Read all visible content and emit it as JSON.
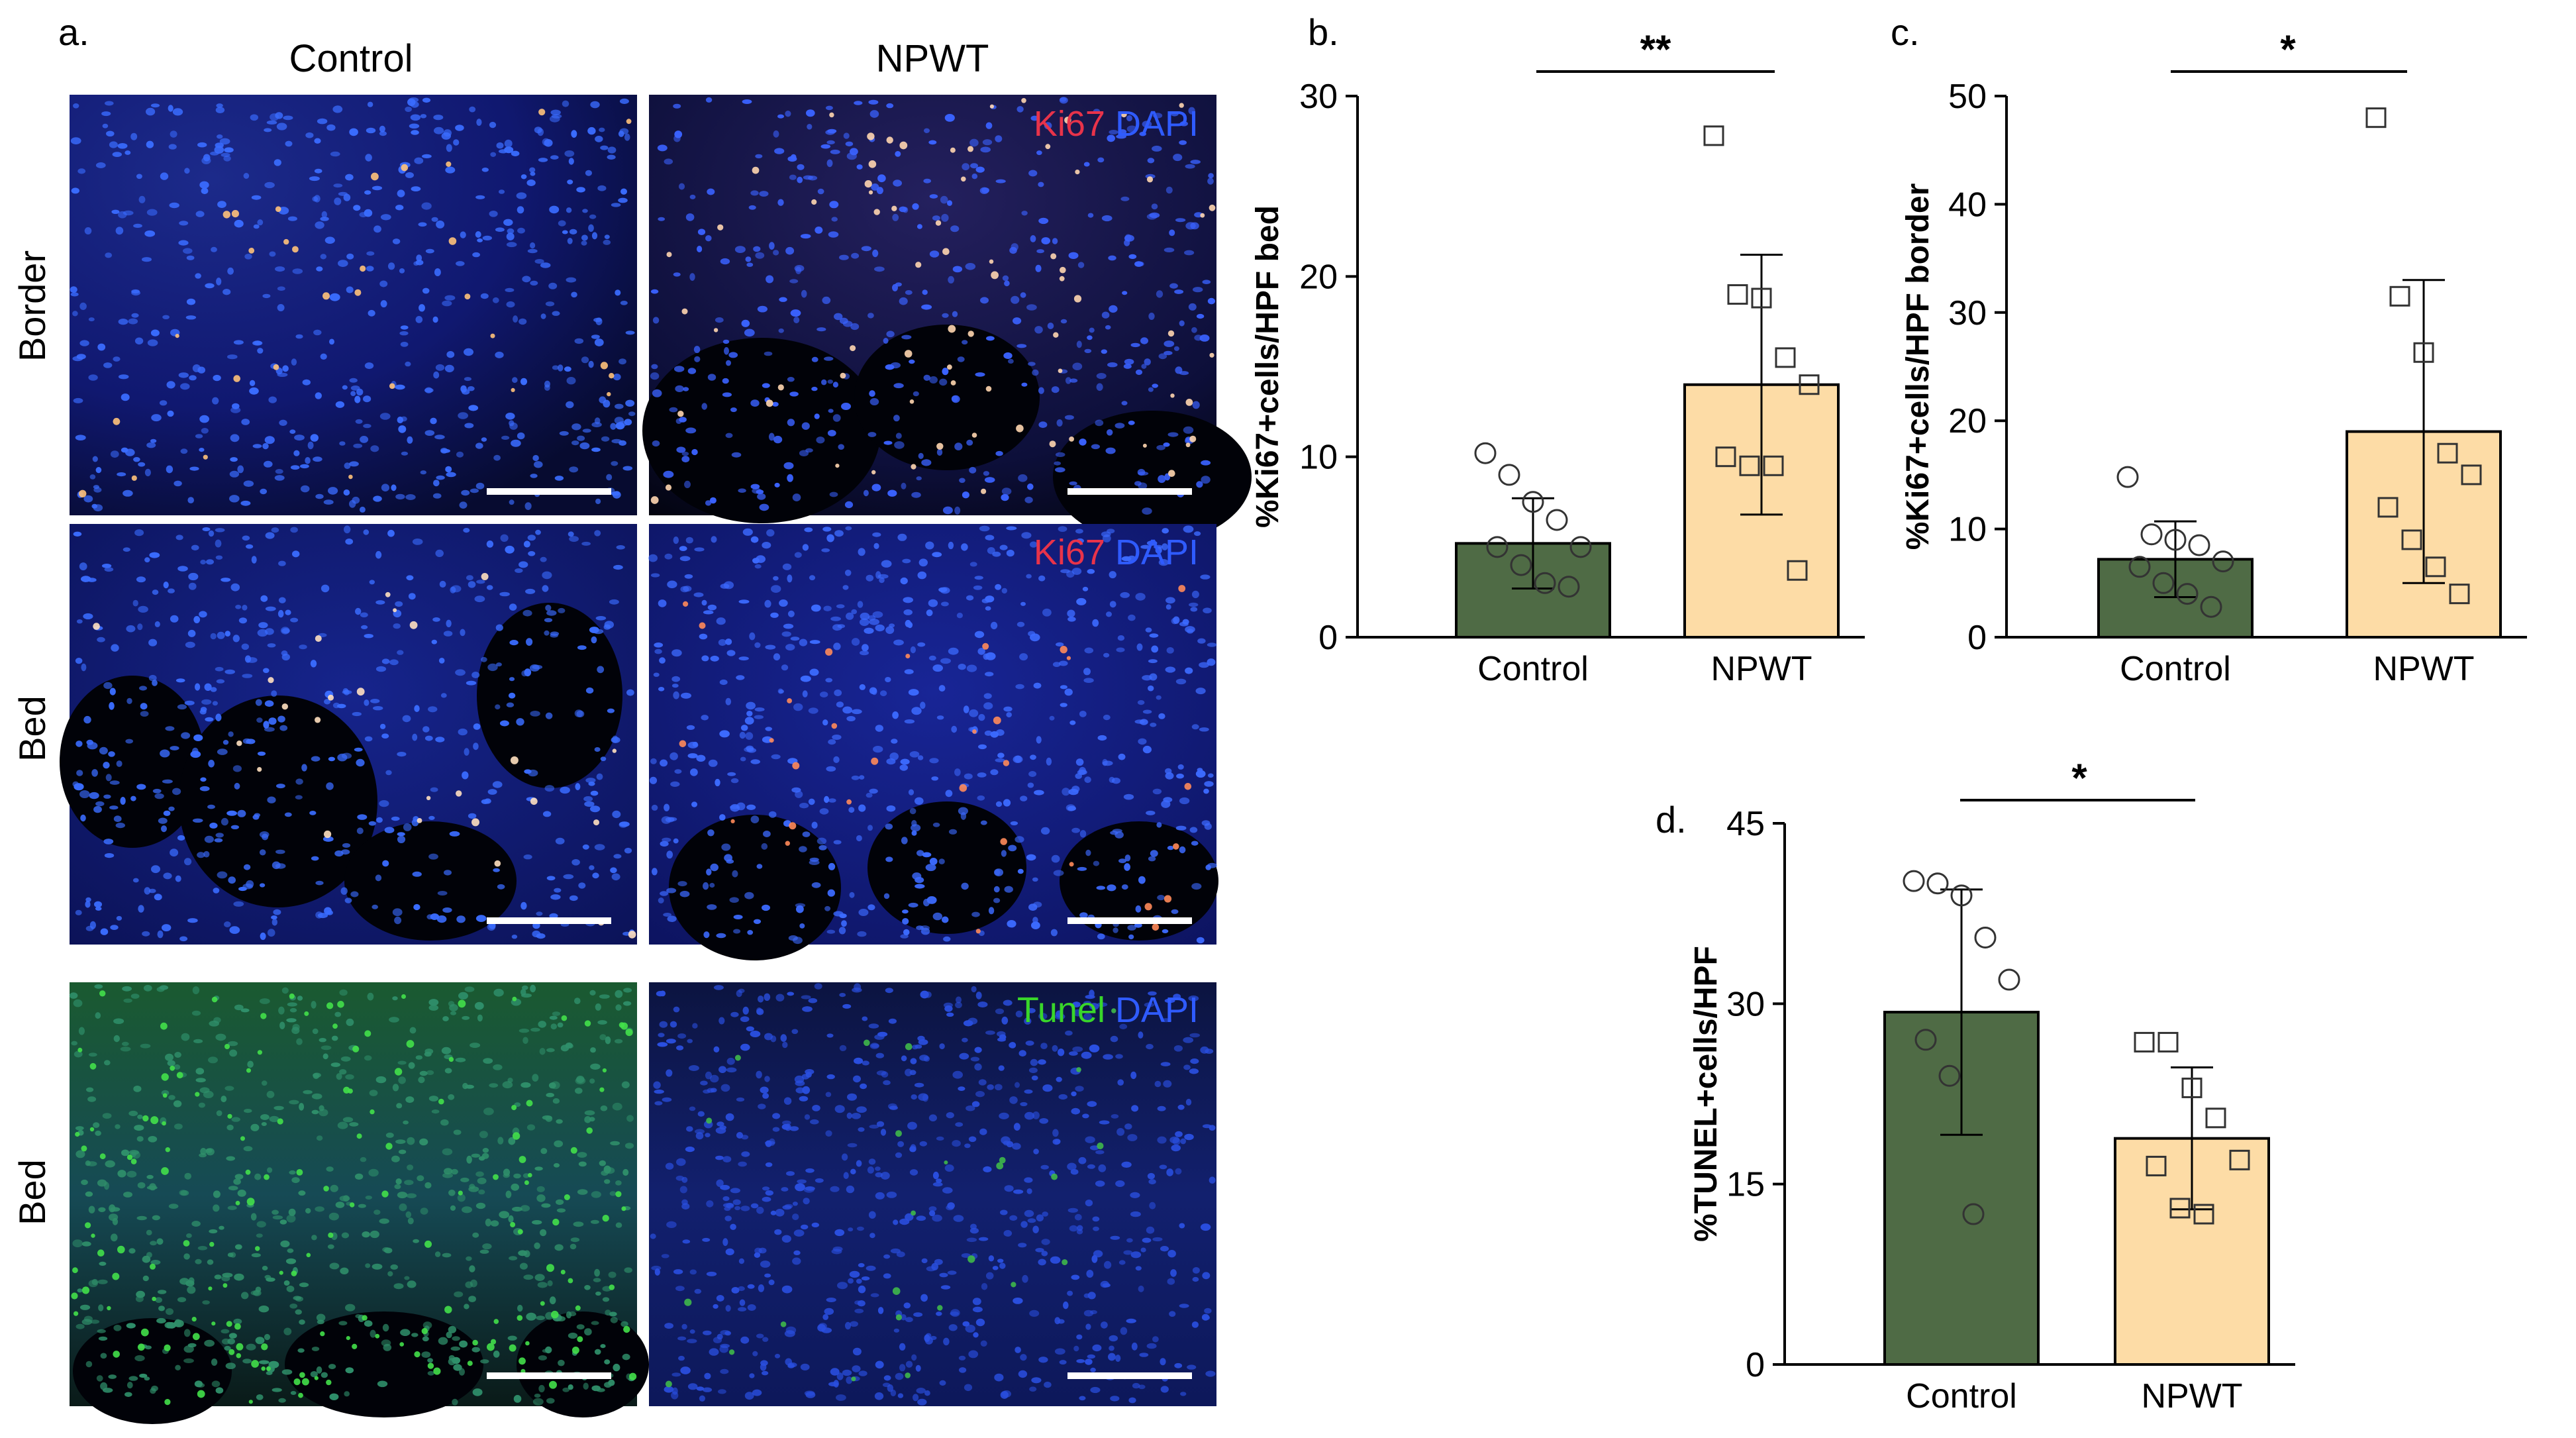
{
  "panel_a": {
    "label": "a.",
    "column_headers": [
      "Control",
      "NPWT"
    ],
    "row_labels": [
      "Border",
      "Bed",
      "Bed"
    ],
    "stain_labels": [
      {
        "marker": "Ki67",
        "counterstain": "DAPI"
      },
      {
        "marker": "Ki67",
        "counterstain": "DAPI"
      },
      {
        "marker": "Tunel",
        "counterstain": "DAPI"
      }
    ],
    "colors": {
      "ki67": "#e8334a",
      "dapi": "#2f5bff",
      "tunel": "#39d62a",
      "nuclei": "#2a4dff",
      "background": "#02030c"
    }
  },
  "colors": {
    "control_bar": "#4f6b45",
    "npwt_bar": "#fddca6",
    "stroke": "#000000"
  },
  "chart_data": [
    {
      "panel": "b.",
      "type": "bar",
      "categories": [
        "Control",
        "NPWT"
      ],
      "values": [
        5.2,
        14.0
      ],
      "error": [
        2.5,
        7.2
      ],
      "points": [
        [
          10.2,
          9.0,
          7.5,
          6.5,
          5.0,
          5.0,
          4.0,
          3.0,
          2.8
        ],
        [
          27.8,
          19.0,
          18.8,
          15.5,
          14.0,
          10.0,
          9.5,
          9.5,
          3.7
        ]
      ],
      "markers": [
        "circle",
        "square"
      ],
      "ylabel": "%Ki67+cells/HPF bed",
      "ylim": [
        0,
        30
      ],
      "yticks": [
        0,
        10,
        20,
        30
      ],
      "significance": "**"
    },
    {
      "panel": "c.",
      "type": "bar",
      "categories": [
        "Control",
        "NPWT"
      ],
      "values": [
        7.2,
        19.0
      ],
      "error": [
        3.5,
        14.0
      ],
      "points": [
        [
          14.8,
          9.5,
          9.0,
          8.5,
          7.0,
          6.5,
          5.0,
          4.0,
          2.8
        ],
        [
          48.0,
          31.5,
          26.3,
          17.0,
          15.0,
          12.0,
          9.0,
          6.5,
          4.0
        ]
      ],
      "markers": [
        "circle",
        "square"
      ],
      "ylabel": "%Ki67+cells/HPF border",
      "ylim": [
        0,
        50
      ],
      "yticks": [
        0,
        10,
        20,
        30,
        40,
        50
      ],
      "significance": "*"
    },
    {
      "panel": "d.",
      "type": "bar",
      "categories": [
        "Control",
        "NPWT"
      ],
      "values": [
        29.3,
        18.8
      ],
      "error": [
        10.2,
        5.9
      ],
      "points": [
        [
          40.2,
          40.0,
          39.0,
          35.5,
          32.0,
          27.0,
          24.0,
          12.5
        ],
        [
          26.8,
          26.8,
          23.0,
          20.5,
          17.0,
          16.5,
          13.0,
          12.5
        ]
      ],
      "markers": [
        "circle",
        "square"
      ],
      "ylabel": "%TUNEL+cells/HPF",
      "ylim": [
        0,
        45
      ],
      "yticks": [
        0,
        15,
        30,
        45
      ],
      "significance": "*"
    }
  ]
}
